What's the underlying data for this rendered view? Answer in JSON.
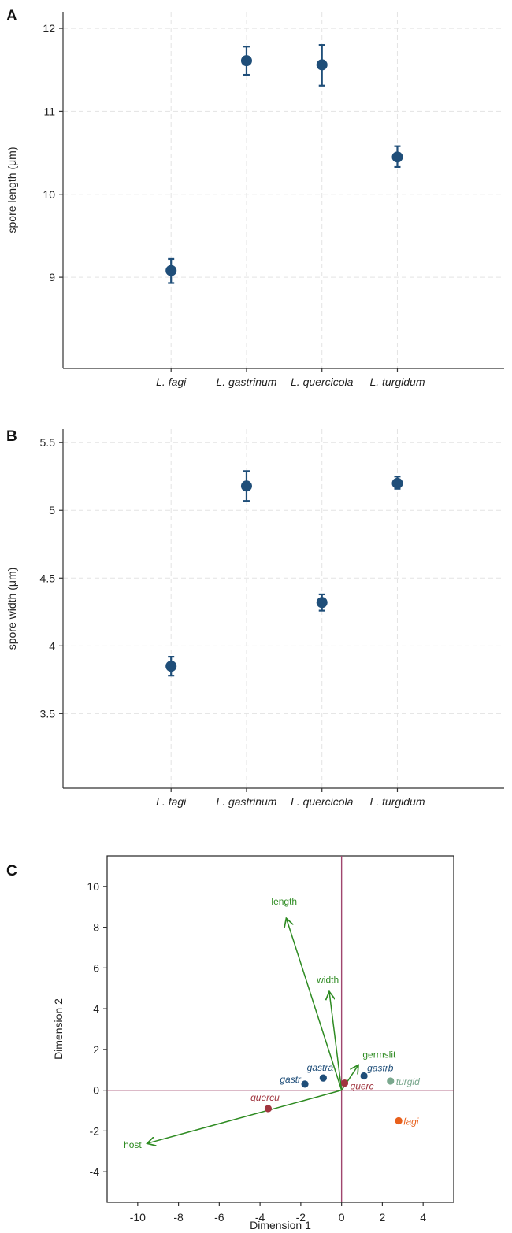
{
  "chart_data": [
    {
      "panel": "A",
      "type": "scatter",
      "categories": [
        "L. fagi",
        "L. gastrinum",
        "L. quercicola",
        "L. turgidum"
      ],
      "values": [
        9.08,
        11.61,
        11.56,
        10.45
      ],
      "err_low": [
        8.93,
        11.44,
        11.31,
        10.33
      ],
      "err_high": [
        9.22,
        11.78,
        11.8,
        10.58
      ],
      "ylabel": "spore length (μm)",
      "ylim": [
        7.9,
        12.2
      ],
      "yticks": [
        9,
        10,
        11,
        12
      ],
      "color": "#1f4e79"
    },
    {
      "panel": "B",
      "type": "scatter",
      "categories": [
        "L. fagi",
        "L. gastrinum",
        "L. quercicola",
        "L. turgidum"
      ],
      "values": [
        3.85,
        5.18,
        4.32,
        5.2
      ],
      "err_low": [
        3.78,
        5.07,
        4.26,
        5.16
      ],
      "err_high": [
        3.92,
        5.29,
        4.38,
        5.25
      ],
      "ylabel": "spore width (μm)",
      "ylim": [
        2.95,
        5.6
      ],
      "yticks": [
        3.5,
        4,
        4.5,
        5,
        5.5
      ],
      "ytick_labels": [
        "3.5",
        "4",
        "4.5",
        "5",
        "5.5"
      ],
      "color": "#1f4e79"
    },
    {
      "panel": "C",
      "type": "scatter",
      "title": "",
      "xlabel": "Dimension 1",
      "ylabel": "Dimension 2",
      "xlim": [
        -11.5,
        5.5
      ],
      "ylim": [
        -5.5,
        11.5
      ],
      "xticks": [
        -10,
        -8,
        -6,
        -4,
        -2,
        0,
        2,
        4
      ],
      "yticks": [
        -4,
        -2,
        0,
        2,
        4,
        6,
        8,
        10
      ],
      "arrows": [
        {
          "name": "length",
          "x": -2.7,
          "y": 8.4,
          "color": "#2e8b22"
        },
        {
          "name": "width",
          "x": -0.6,
          "y": 4.8,
          "color": "#2e8b22"
        },
        {
          "name": "germslit",
          "x": 0.8,
          "y": 1.2,
          "color": "#2e8b22"
        },
        {
          "name": "host",
          "x": -9.5,
          "y": -2.6,
          "color": "#2e8b22"
        }
      ],
      "points": [
        {
          "name": "gastr",
          "x": -1.8,
          "y": 0.3,
          "color": "#1f4e79"
        },
        {
          "name": "gastra",
          "x": -0.9,
          "y": 0.6,
          "color": "#1f4e79"
        },
        {
          "name": "gastrb",
          "x": 1.1,
          "y": 0.7,
          "color": "#1f4e79"
        },
        {
          "name": "querc",
          "x": 0.15,
          "y": 0.35,
          "color": "#a0353f"
        },
        {
          "name": "quercu",
          "x": -3.6,
          "y": -0.9,
          "color": "#a0353f"
        },
        {
          "name": "turgid",
          "x": 2.4,
          "y": 0.45,
          "color": "#7aa88e"
        },
        {
          "name": "fagi",
          "x": 2.8,
          "y": -1.5,
          "color": "#e8601c"
        }
      ],
      "refline_color": "#a0466e"
    }
  ]
}
